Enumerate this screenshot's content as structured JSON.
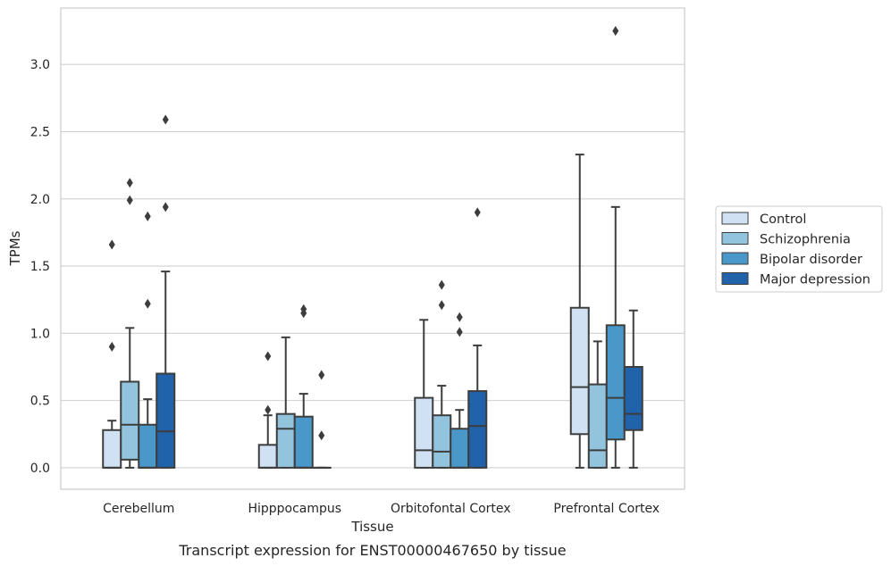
{
  "chart_data": {
    "type": "box",
    "title": "",
    "caption": "Transcript expression for ENST00000467650 by tissue",
    "xlabel": "Tissue",
    "ylabel": "TPMs",
    "ylim": [
      -0.16,
      3.42
    ],
    "yticks": [
      "0.0",
      "0.5",
      "1.0",
      "1.5",
      "2.0",
      "2.5",
      "3.0"
    ],
    "grid": true,
    "legend_position": "right",
    "categories": [
      "Cerebellum",
      "Hipppocampus",
      "Orbitofontal Cortex",
      "Prefrontal Cortex"
    ],
    "series": [
      {
        "name": "Control",
        "color": "#cfe1f2",
        "boxes": [
          {
            "q1": 0.0,
            "median": 0.0,
            "q3": 0.28,
            "whisker_low": 0.0,
            "whisker_high": 0.35,
            "outliers": [
              0.9,
              1.66
            ]
          },
          {
            "q1": 0.0,
            "median": 0.0,
            "q3": 0.17,
            "whisker_low": 0.0,
            "whisker_high": 0.39,
            "outliers": [
              0.43,
              0.83
            ]
          },
          {
            "q1": 0.0,
            "median": 0.13,
            "q3": 0.52,
            "whisker_low": 0.0,
            "whisker_high": 1.1,
            "outliers": []
          },
          {
            "q1": 0.25,
            "median": 0.6,
            "q3": 1.19,
            "whisker_low": 0.0,
            "whisker_high": 2.33,
            "outliers": []
          }
        ]
      },
      {
        "name": "Schizophrenia",
        "color": "#93c4de",
        "boxes": [
          {
            "q1": 0.06,
            "median": 0.32,
            "q3": 0.64,
            "whisker_low": 0.0,
            "whisker_high": 1.04,
            "outliers": [
              1.99,
              2.12
            ]
          },
          {
            "q1": 0.0,
            "median": 0.29,
            "q3": 0.4,
            "whisker_low": 0.0,
            "whisker_high": 0.97,
            "outliers": []
          },
          {
            "q1": 0.0,
            "median": 0.12,
            "q3": 0.39,
            "whisker_low": 0.0,
            "whisker_high": 0.61,
            "outliers": [
              1.21,
              1.36
            ]
          },
          {
            "q1": 0.0,
            "median": 0.13,
            "q3": 0.62,
            "whisker_low": 0.0,
            "whisker_high": 0.94,
            "outliers": []
          }
        ]
      },
      {
        "name": "Bipolar disorder",
        "color": "#4a98c9",
        "boxes": [
          {
            "q1": 0.0,
            "median": 0.0,
            "q3": 0.32,
            "whisker_low": 0.0,
            "whisker_high": 0.51,
            "outliers": [
              1.22,
              1.87
            ]
          },
          {
            "q1": 0.0,
            "median": 0.0,
            "q3": 0.38,
            "whisker_low": 0.0,
            "whisker_high": 0.55,
            "outliers": [
              1.15,
              1.18
            ]
          },
          {
            "q1": 0.0,
            "median": 0.0,
            "q3": 0.29,
            "whisker_low": 0.0,
            "whisker_high": 0.43,
            "outliers": [
              1.01,
              1.12
            ]
          },
          {
            "q1": 0.21,
            "median": 0.52,
            "q3": 1.06,
            "whisker_low": 0.0,
            "whisker_high": 1.94,
            "outliers": [
              3.25
            ]
          }
        ]
      },
      {
        "name": "Major depression",
        "color": "#2163aa",
        "boxes": [
          {
            "q1": 0.0,
            "median": 0.27,
            "q3": 0.7,
            "whisker_low": 0.0,
            "whisker_high": 1.46,
            "outliers": [
              1.94,
              2.59
            ]
          },
          {
            "q1": 0.0,
            "median": 0.0,
            "q3": 0.0,
            "whisker_low": 0.0,
            "whisker_high": 0.0,
            "outliers": [
              0.24,
              0.69
            ]
          },
          {
            "q1": 0.0,
            "median": 0.31,
            "q3": 0.57,
            "whisker_low": 0.0,
            "whisker_high": 0.91,
            "outliers": [
              1.9
            ]
          },
          {
            "q1": 0.28,
            "median": 0.4,
            "q3": 0.75,
            "whisker_low": 0.0,
            "whisker_high": 1.17,
            "outliers": []
          }
        ]
      }
    ]
  }
}
